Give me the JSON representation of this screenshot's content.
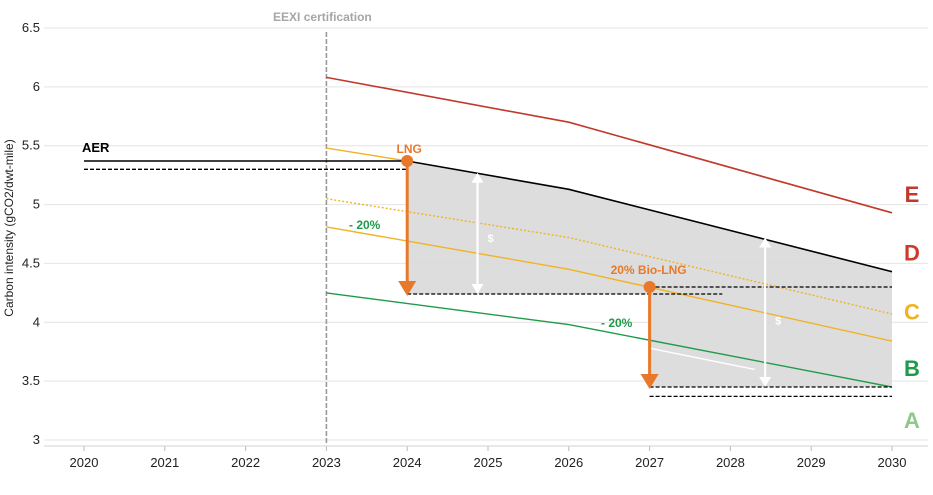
{
  "chart_data": {
    "type": "line",
    "title": "",
    "xlabel": "",
    "ylabel": "Carbon intensity (gCO2/dwt-mile)",
    "xlim": [
      2020,
      2030
    ],
    "ylim": [
      3,
      6.5
    ],
    "x_ticks": [
      "2020",
      "2021",
      "2022",
      "2023",
      "2024",
      "2025",
      "2026",
      "2027",
      "2028",
      "2029",
      "2030"
    ],
    "y_ticks": [
      "3",
      "3.5",
      "4",
      "4.5",
      "5",
      "5.5",
      "6",
      "6.5"
    ],
    "grid": "horizontal",
    "colors": {
      "E": "#c0392b",
      "D": "#d13a2a",
      "C": "#f0b323",
      "B": "#1e9b48",
      "A": "#8cc98a",
      "AER": "#000000",
      "LNG": "#e8792b",
      "savings": "#d9d9d9"
    },
    "series": [
      {
        "name": "E",
        "points": [
          [
            2023,
            6.08
          ],
          [
            2026,
            5.7
          ],
          [
            2030,
            4.93
          ]
        ]
      },
      {
        "name": "AER",
        "points": [
          [
            2020,
            5.37
          ],
          [
            2023,
            5.37
          ],
          [
            2024,
            5.37
          ],
          [
            2026,
            5.13
          ],
          [
            2030,
            4.43
          ]
        ]
      },
      {
        "name": "AER_baseline",
        "points": [
          [
            2020,
            5.3
          ],
          [
            2024,
            5.3
          ]
        ]
      },
      {
        "name": "C",
        "points": [
          [
            2023,
            5.48
          ],
          [
            2024,
            5.37
          ]
        ]
      },
      {
        "name": "C_upper",
        "points": [
          [
            2023,
            5.05
          ],
          [
            2026,
            4.72
          ],
          [
            2030,
            4.07
          ]
        ]
      },
      {
        "name": "C_lower",
        "points": [
          [
            2023,
            4.81
          ],
          [
            2026,
            4.45
          ],
          [
            2030,
            3.84
          ]
        ]
      },
      {
        "name": "B",
        "points": [
          [
            2023,
            4.25
          ],
          [
            2026,
            3.98
          ],
          [
            2030,
            3.45
          ]
        ]
      }
    ],
    "region_labels": [
      {
        "label": "E",
        "y": 5.1
      },
      {
        "label": "D",
        "y": 4.6
      },
      {
        "label": "C",
        "y": 4.1
      },
      {
        "label": "B",
        "y": 3.62
      },
      {
        "label": "A",
        "y": 3.18
      }
    ],
    "vertical_line": {
      "x": 2023,
      "label": "EEXI certification"
    },
    "annotations": {
      "aer": "AER",
      "lng": "LNG",
      "bio_lng": "20% Bio-LNG",
      "reduction_1": "- 20%",
      "reduction_2": "- 20%",
      "dollar": "$"
    },
    "lng_step": {
      "x": 2024,
      "from": 5.37,
      "to": 4.24
    },
    "bio_step": {
      "x": 2027,
      "from": 4.3,
      "to": 3.45
    }
  }
}
